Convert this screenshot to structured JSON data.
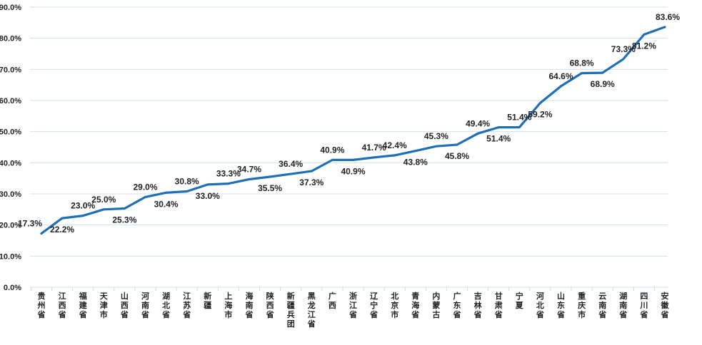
{
  "chart_data": {
    "type": "line",
    "categories": [
      "贵州省",
      "江西省",
      "福建省",
      "天津市",
      "山西省",
      "河南省",
      "湖北省",
      "江苏省",
      "新疆",
      "上海市",
      "海南省",
      "陕西省",
      "新疆兵团",
      "黑龙江省",
      "广西",
      "浙江省",
      "辽宁省",
      "北京市",
      "青海省",
      "内蒙古",
      "广东省",
      "吉林省",
      "甘肃省",
      "宁夏",
      "河北省",
      "山东省",
      "重庆市",
      "云南省",
      "湖南省",
      "四川省",
      "安徽省"
    ],
    "values": [
      17.3,
      22.2,
      23.0,
      25.0,
      25.3,
      29.0,
      30.4,
      30.8,
      33.0,
      33.3,
      34.7,
      35.5,
      36.4,
      37.3,
      40.9,
      40.9,
      41.7,
      42.4,
      43.8,
      45.3,
      45.8,
      49.4,
      51.4,
      51.4,
      59.2,
      64.6,
      68.8,
      68.9,
      73.3,
      81.2,
      83.6
    ],
    "data_labels": [
      "17.3%",
      "22.2%",
      "23.0%",
      "25.0%",
      "25.3%",
      "29.0%",
      "30.4%",
      "30.8%",
      "33.0%",
      "33.3%",
      "34.7%",
      "35.5%",
      "36.4%",
      "37.3%",
      "40.9%",
      "40.9%",
      "41.7%",
      "42.4%",
      "43.8%",
      "45.3%",
      "45.8%",
      "49.4%",
      "51.4%",
      "51.4%",
      "59.2%",
      "64.6%",
      "68.8%",
      "68.9%",
      "73.3%",
      "81.2%",
      "83.6%"
    ],
    "label_positions": [
      "above",
      "below",
      "above",
      "above",
      "below",
      "above",
      "below",
      "above",
      "below",
      "above",
      "above",
      "below",
      "above",
      "below",
      "above",
      "below",
      "above",
      "above",
      "below",
      "above",
      "below",
      "above",
      "below",
      "above",
      "below",
      "above",
      "above",
      "below",
      "above",
      "below",
      "above"
    ],
    "yticks": [
      "0.0%",
      "10.0%",
      "20.0%",
      "30.0%",
      "40.0%",
      "50.0%",
      "60.0%",
      "70.0%",
      "80.0%",
      "90.0%"
    ],
    "ylim": [
      0,
      90
    ],
    "grid": true,
    "legend": "none",
    "line_color": "#1f6fb6",
    "grid_color": "#cfe0ee"
  }
}
